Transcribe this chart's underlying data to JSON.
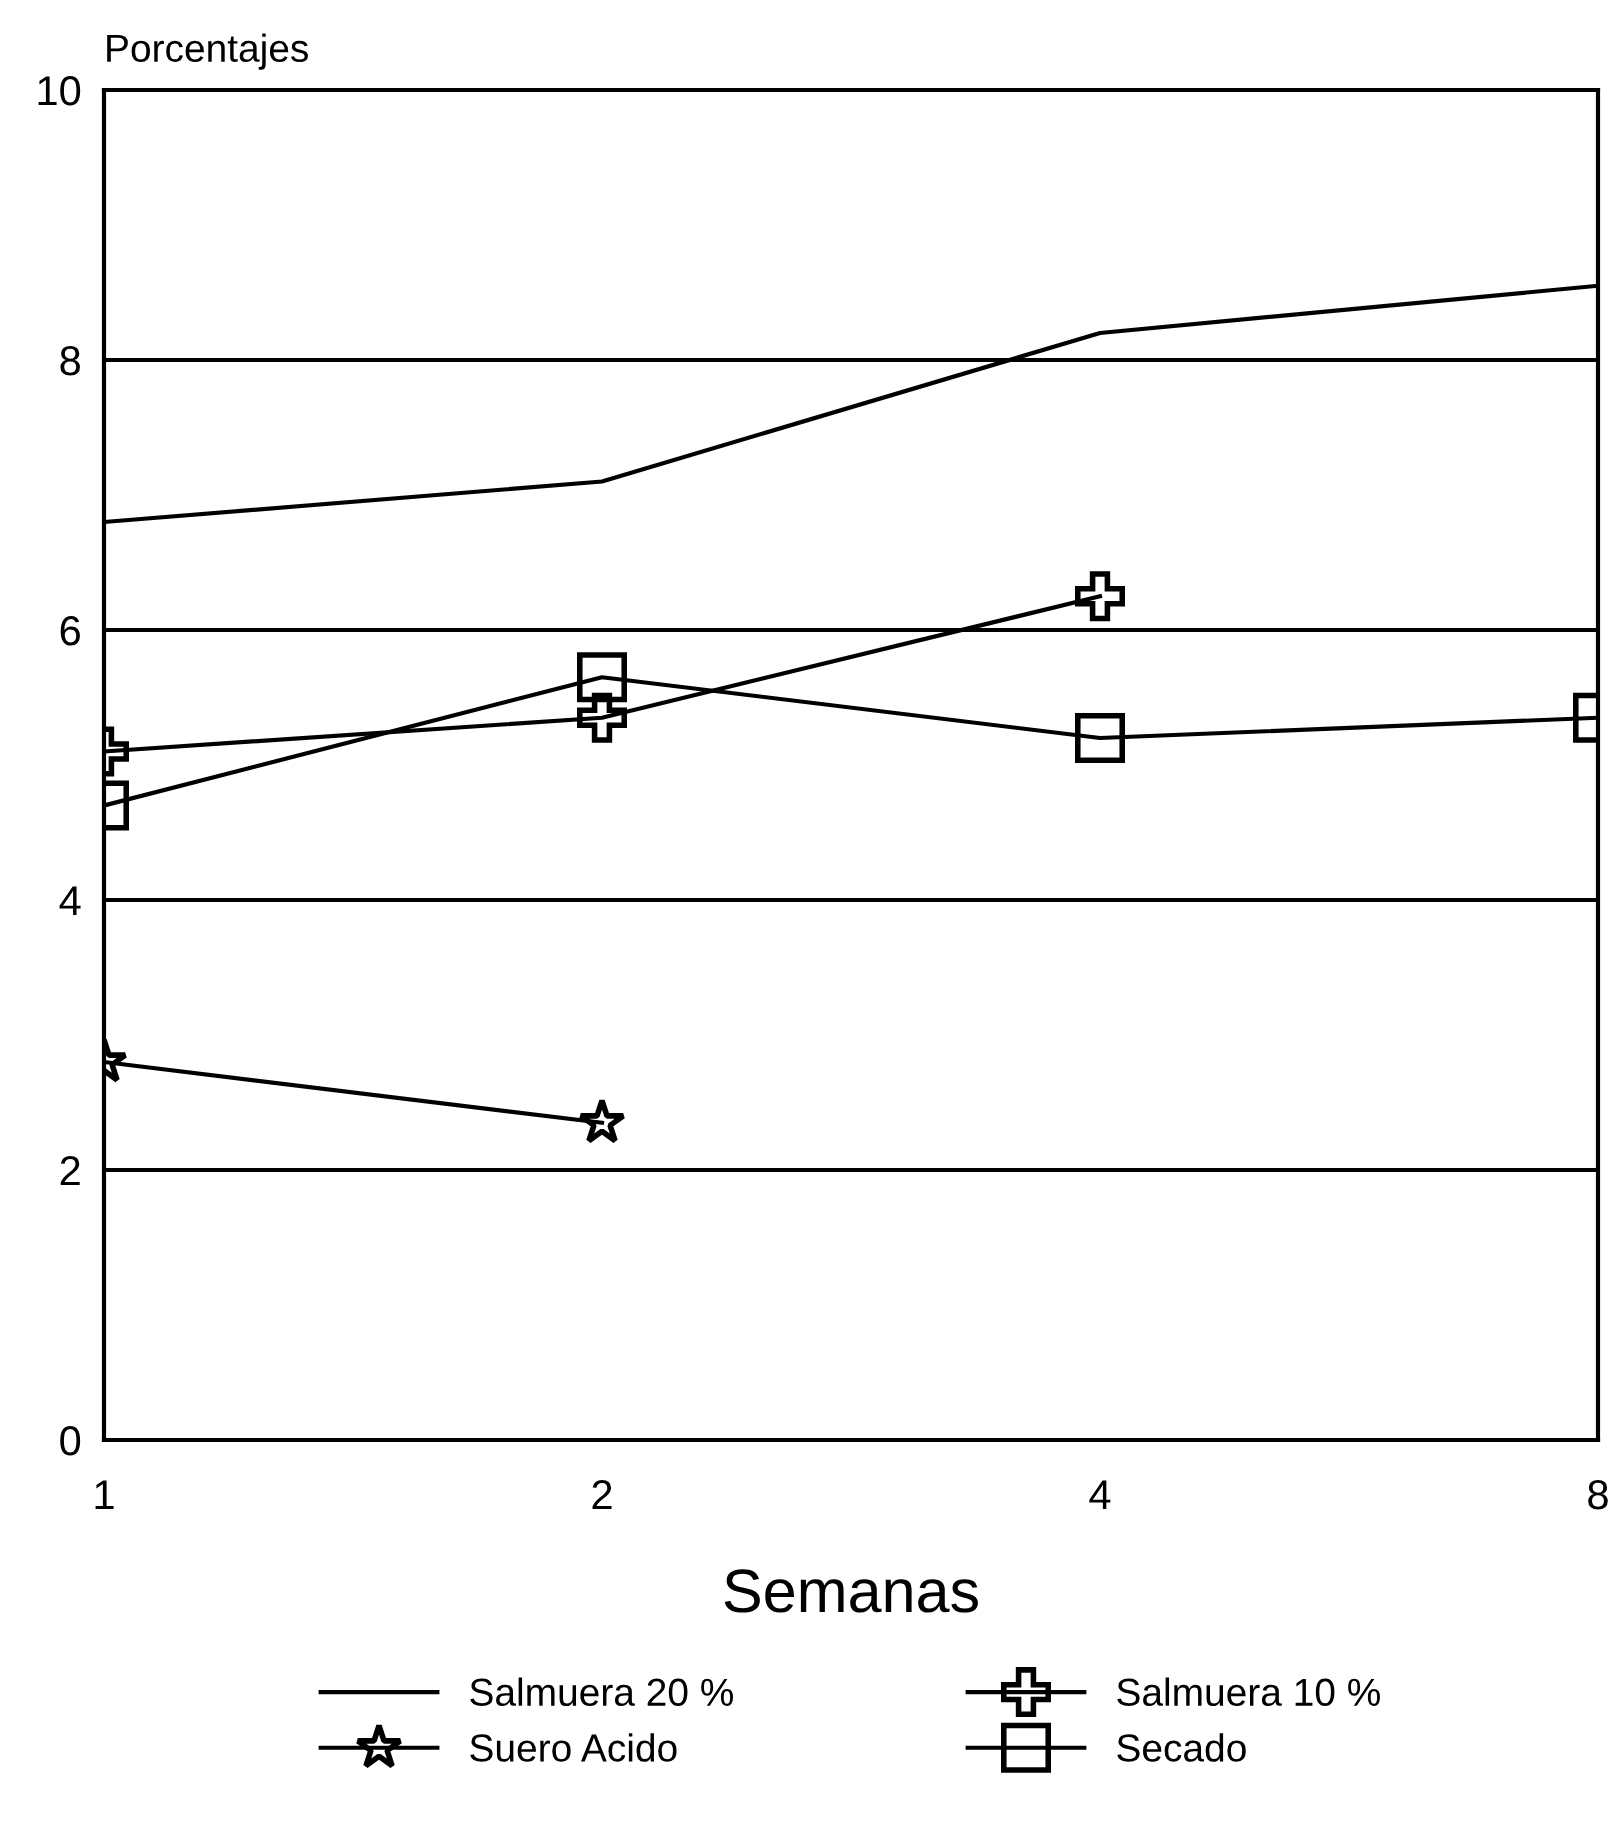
{
  "chart_data": {
    "type": "line",
    "ylabel": "Porcentajes",
    "xlabel": "Semanas",
    "categories": [
      "1",
      "2",
      "4",
      "8"
    ],
    "series": [
      {
        "name": "Salmuera 20 %",
        "color": "#000000",
        "marker": "none",
        "values": [
          6.8,
          7.1,
          8.2,
          8.55
        ]
      },
      {
        "name": "Salmuera 10 %",
        "color": "#000000",
        "marker": "cross",
        "values": [
          5.1,
          5.35,
          6.25,
          null
        ]
      },
      {
        "name": "Suero Acido",
        "color": "#000000",
        "marker": "star",
        "values": [
          2.8,
          2.35,
          null,
          null
        ]
      },
      {
        "name": "Secado",
        "color": "#000000",
        "marker": "square",
        "values": [
          4.7,
          5.65,
          5.2,
          5.35
        ]
      }
    ],
    "ylim": [
      0,
      10
    ],
    "yticks": [
      0,
      2,
      4,
      6,
      8,
      10
    ],
    "grid": "y",
    "legend": "bottom",
    "line_style": "solid"
  }
}
